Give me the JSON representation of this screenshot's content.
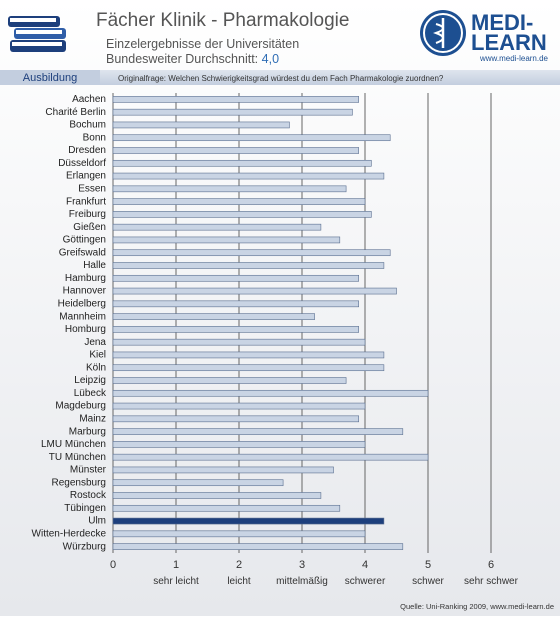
{
  "header": {
    "title": "Fächer Klinik - Pharmakologie",
    "subtitle": "Einzelergebnisse der Universitäten",
    "average_label": "Bundesweiter Durchschnitt:",
    "average_value": "4,0",
    "section": "Ausbildung",
    "question": "Originalfrage: Welchen Schwierigkeitsgrad würdest du dem Fach Pharmakologie zuordnen?",
    "logo_top": "MEDI-",
    "logo_bottom": "LEARN",
    "logo_url": "www.medi-learn.de"
  },
  "footer": "Quelle: Uni-Ranking 2009, www.medi-learn.de",
  "chart_data": {
    "type": "hbar",
    "categories": [
      "Aachen",
      "Charité Berlin",
      "Bochum",
      "Bonn",
      "Dresden",
      "Düsseldorf",
      "Erlangen",
      "Essen",
      "Frankfurt",
      "Freiburg",
      "Gießen",
      "Göttingen",
      "Greifswald",
      "Halle",
      "Hamburg",
      "Hannover",
      "Heidelberg",
      "Mannheim",
      "Homburg",
      "Jena",
      "Kiel",
      "Köln",
      "Leipzig",
      "Lübeck",
      "Magdeburg",
      "Mainz",
      "Marburg",
      "LMU München",
      "TU München",
      "Münster",
      "Regensburg",
      "Rostock",
      "Tübingen",
      "Ulm",
      "Witten-Herdecke",
      "Würzburg"
    ],
    "values": [
      3.9,
      3.8,
      2.8,
      4.4,
      3.9,
      4.1,
      4.3,
      3.7,
      4.0,
      4.1,
      3.3,
      3.6,
      4.4,
      4.3,
      3.9,
      4.5,
      3.9,
      3.2,
      3.9,
      4.0,
      4.3,
      4.3,
      3.7,
      5.0,
      4.0,
      3.9,
      4.6,
      4.0,
      5.0,
      3.5,
      2.7,
      3.3,
      3.6,
      4.3,
      4.0,
      4.6
    ],
    "bar_colors": [
      "#c9d4e4",
      "#c9d4e4",
      "#c9d4e4",
      "#c9d4e4",
      "#c9d4e4",
      "#c9d4e4",
      "#c9d4e4",
      "#c9d4e4",
      "#c9d4e4",
      "#c9d4e4",
      "#c9d4e4",
      "#c9d4e4",
      "#c9d4e4",
      "#c9d4e4",
      "#c9d4e4",
      "#c9d4e4",
      "#c9d4e4",
      "#c9d4e4",
      "#c9d4e4",
      "#c9d4e4",
      "#c9d4e4",
      "#c9d4e4",
      "#c9d4e4",
      "#c9d4e4",
      "#c9d4e4",
      "#c9d4e4",
      "#c9d4e4",
      "#c9d4e4",
      "#c9d4e4",
      "#c9d4e4",
      "#c9d4e4",
      "#c9d4e4",
      "#c9d4e4",
      "#1d3f7c",
      "#c9d4e4",
      "#c9d4e4"
    ],
    "xlim": [
      0,
      6
    ],
    "xticks": [
      0,
      1,
      2,
      3,
      4,
      5,
      6
    ],
    "scale_labels": [
      {
        "value": 1,
        "label": "sehr leicht"
      },
      {
        "value": 2,
        "label": "leicht"
      },
      {
        "value": 3,
        "label": "mittelmäßig"
      },
      {
        "value": 4,
        "label": "schwerer"
      },
      {
        "value": 5,
        "label": "schwer"
      },
      {
        "value": 6,
        "label": "sehr schwer"
      }
    ],
    "grid": true
  }
}
